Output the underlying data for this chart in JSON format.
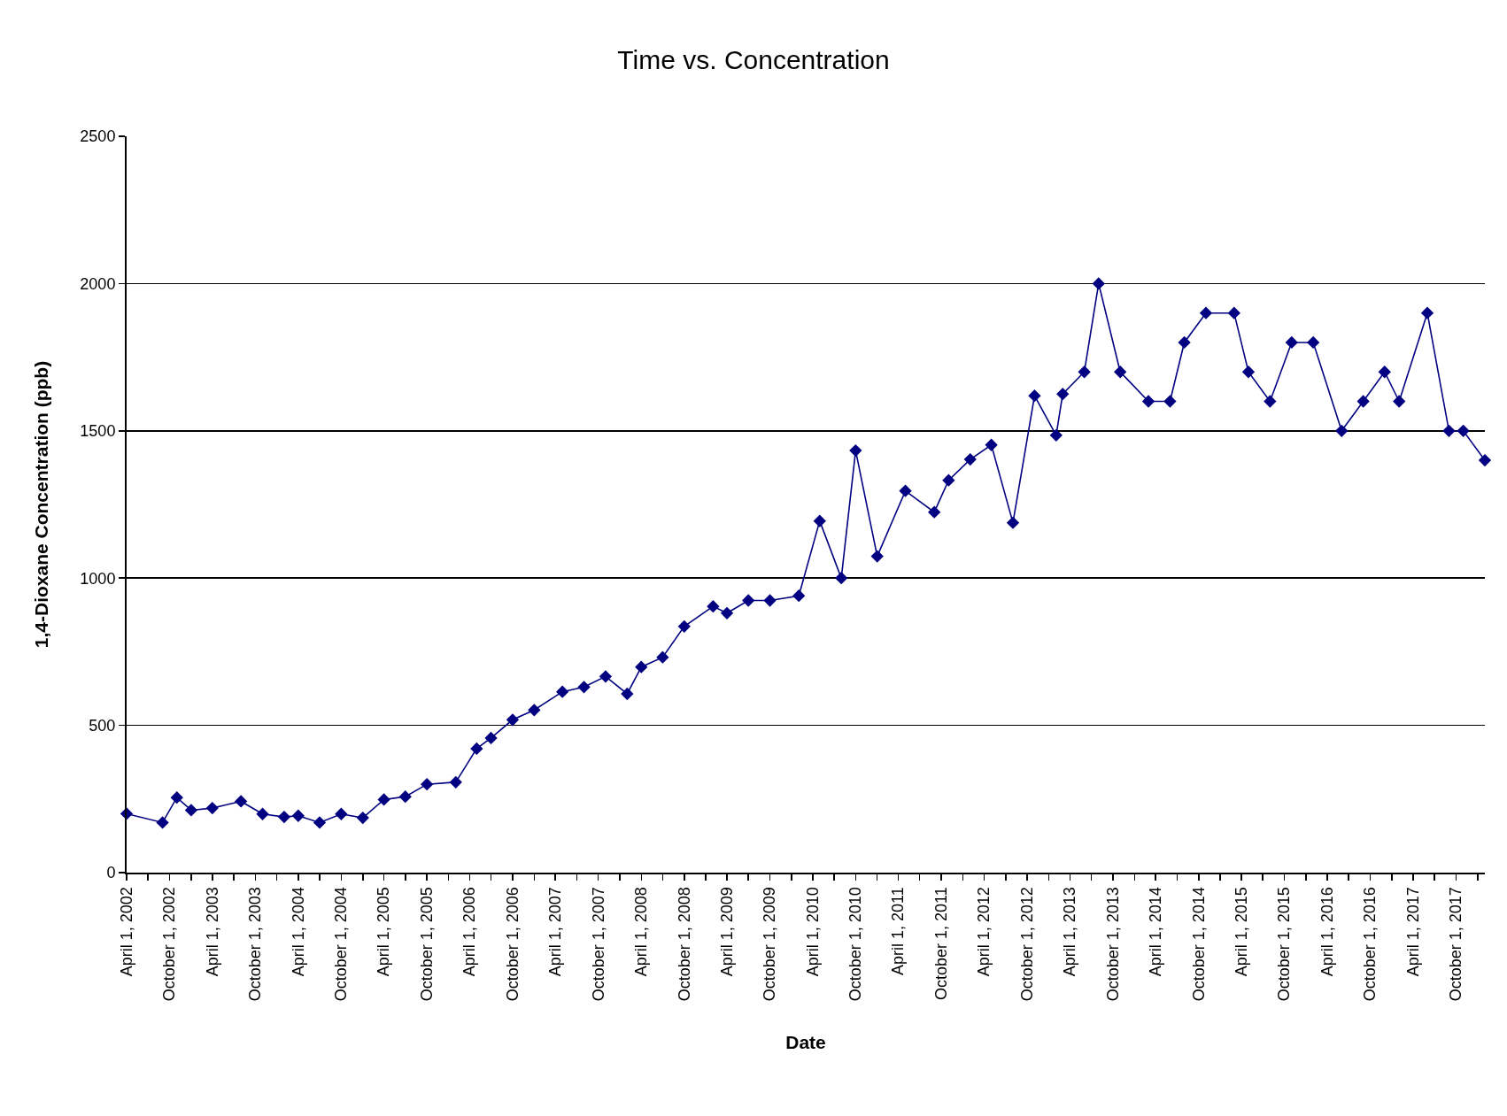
{
  "chart_data": {
    "type": "line",
    "title": "Time vs. Concentration",
    "xlabel": "Date",
    "ylabel": "1,4-Dioxane Concentration (ppb)",
    "x": [
      "2002-04",
      "2002-09",
      "2002-11",
      "2003-01",
      "2003-04",
      "2003-08",
      "2003-11",
      "2004-02",
      "2004-04",
      "2004-07",
      "2004-10",
      "2005-01",
      "2005-04",
      "2005-07",
      "2005-10",
      "2006-02",
      "2006-05",
      "2006-07",
      "2006-10",
      "2007-01",
      "2007-05",
      "2007-08",
      "2007-11",
      "2008-02",
      "2008-04",
      "2008-07",
      "2008-10",
      "2009-02",
      "2009-04",
      "2009-07",
      "2009-10",
      "2010-02",
      "2010-05",
      "2010-08",
      "2010-10",
      "2011-01",
      "2011-05",
      "2011-09",
      "2011-11",
      "2012-02",
      "2012-05",
      "2012-08",
      "2012-11",
      "2013-02",
      "2013-03",
      "2013-06",
      "2013-08",
      "2013-11",
      "2014-03",
      "2014-06",
      "2014-08",
      "2014-11",
      "2015-03",
      "2015-05",
      "2015-08",
      "2015-11",
      "2016-02",
      "2016-06",
      "2016-09",
      "2016-12",
      "2017-02",
      "2017-06",
      "2017-09",
      "2017-11",
      "2018-02"
    ],
    "series": [
      {
        "color": "#000080",
        "values": [
          200,
          170,
          255,
          212,
          219,
          242,
          199,
          189,
          193,
          170,
          199,
          186,
          248,
          258,
          300,
          307,
          421,
          457,
          519,
          552,
          614,
          630,
          666,
          607,
          698,
          731,
          836,
          904,
          881,
          924,
          924,
          940,
          1194,
          1000,
          1433,
          1074,
          1296,
          1224,
          1332,
          1403,
          1452,
          1188,
          1619,
          1485,
          1625,
          1700,
          2000,
          1700,
          1600,
          1600,
          1800,
          1900,
          1900,
          1700,
          1600,
          1800,
          1800,
          1500,
          1600,
          1700,
          1600,
          1900,
          1500,
          1500,
          1400
        ]
      }
    ],
    "marker": "diamond",
    "line_style": "solid",
    "grid": "y",
    "ylim": [
      0,
      2500
    ],
    "yticks": [
      0,
      500,
      1000,
      1500,
      2000,
      2500
    ],
    "xlim": [
      "2002-04-01",
      "2018-02-01"
    ],
    "xticks": [
      {
        "value": "2002-04-01",
        "label": "April 1, 2002"
      },
      {
        "value": "2002-07-01",
        "label": null
      },
      {
        "value": "2002-10-01",
        "label": "October 1, 2002"
      },
      {
        "value": "2003-01-01",
        "label": null
      },
      {
        "value": "2003-04-01",
        "label": "April 1, 2003"
      },
      {
        "value": "2003-07-01",
        "label": null
      },
      {
        "value": "2003-10-01",
        "label": "October 1, 2003"
      },
      {
        "value": "2004-01-01",
        "label": null
      },
      {
        "value": "2004-04-01",
        "label": "April 1, 2004"
      },
      {
        "value": "2004-07-01",
        "label": null
      },
      {
        "value": "2004-10-01",
        "label": "October 1, 2004"
      },
      {
        "value": "2005-01-01",
        "label": null
      },
      {
        "value": "2005-04-01",
        "label": "April 1, 2005"
      },
      {
        "value": "2005-07-01",
        "label": null
      },
      {
        "value": "2005-10-01",
        "label": "October 1, 2005"
      },
      {
        "value": "2006-01-01",
        "label": null
      },
      {
        "value": "2006-04-01",
        "label": "April 1, 2006"
      },
      {
        "value": "2006-07-01",
        "label": null
      },
      {
        "value": "2006-10-01",
        "label": "October 1, 2006"
      },
      {
        "value": "2007-01-01",
        "label": null
      },
      {
        "value": "2007-04-01",
        "label": "April 1, 2007"
      },
      {
        "value": "2007-07-01",
        "label": null
      },
      {
        "value": "2007-10-01",
        "label": "October 1, 2007"
      },
      {
        "value": "2008-01-01",
        "label": null
      },
      {
        "value": "2008-04-01",
        "label": "April 1, 2008"
      },
      {
        "value": "2008-07-01",
        "label": null
      },
      {
        "value": "2008-10-01",
        "label": "October 1, 2008"
      },
      {
        "value": "2009-01-01",
        "label": null
      },
      {
        "value": "2009-04-01",
        "label": "April 1, 2009"
      },
      {
        "value": "2009-07-01",
        "label": null
      },
      {
        "value": "2009-10-01",
        "label": "October 1, 2009"
      },
      {
        "value": "2010-01-01",
        "label": null
      },
      {
        "value": "2010-04-01",
        "label": "April 1, 2010"
      },
      {
        "value": "2010-07-01",
        "label": null
      },
      {
        "value": "2010-10-01",
        "label": "October 1, 2010"
      },
      {
        "value": "2011-01-01",
        "label": null
      },
      {
        "value": "2011-04-01",
        "label": "April 1, 2011"
      },
      {
        "value": "2011-07-01",
        "label": null
      },
      {
        "value": "2011-10-01",
        "label": "October 1, 2011"
      },
      {
        "value": "2012-01-01",
        "label": null
      },
      {
        "value": "2012-04-01",
        "label": "April 1, 2012"
      },
      {
        "value": "2012-07-01",
        "label": null
      },
      {
        "value": "2012-10-01",
        "label": "October 1, 2012"
      },
      {
        "value": "2013-01-01",
        "label": null
      },
      {
        "value": "2013-04-01",
        "label": "April 1, 2013"
      },
      {
        "value": "2013-07-01",
        "label": null
      },
      {
        "value": "2013-10-01",
        "label": "October 1, 2013"
      },
      {
        "value": "2014-01-01",
        "label": null
      },
      {
        "value": "2014-04-01",
        "label": "April 1, 2014"
      },
      {
        "value": "2014-07-01",
        "label": null
      },
      {
        "value": "2014-10-01",
        "label": "October 1, 2014"
      },
      {
        "value": "2015-01-01",
        "label": null
      },
      {
        "value": "2015-04-01",
        "label": "April 1, 2015"
      },
      {
        "value": "2015-07-01",
        "label": null
      },
      {
        "value": "2015-10-01",
        "label": "October 1, 2015"
      },
      {
        "value": "2016-01-01",
        "label": null
      },
      {
        "value": "2016-04-01",
        "label": "April 1, 2016"
      },
      {
        "value": "2016-07-01",
        "label": null
      },
      {
        "value": "2016-10-01",
        "label": "October 1, 2016"
      },
      {
        "value": "2017-01-01",
        "label": null
      },
      {
        "value": "2017-04-01",
        "label": "April 1, 2017"
      },
      {
        "value": "2017-07-01",
        "label": null
      },
      {
        "value": "2017-10-01",
        "label": "October 1, 2017"
      },
      {
        "value": "2018-01-01",
        "label": null
      }
    ]
  }
}
